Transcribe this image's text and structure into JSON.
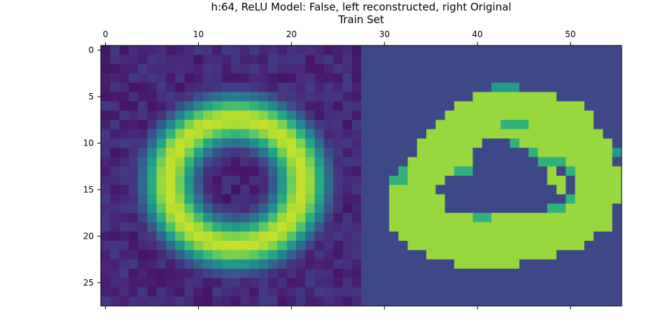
{
  "chart_data": {
    "type": "heatmap",
    "title_line1": "h:64, ReLU Model: False, left reconstructed, right Original",
    "title_line2": "Train Set",
    "colormap": "viridis",
    "image_width": 56,
    "image_height": 28,
    "x_ticks": [
      0,
      10,
      20,
      30,
      40,
      50
    ],
    "x_tick_labels": [
      "0",
      "10",
      "20",
      "30",
      "40",
      "50"
    ],
    "y_ticks": [
      0,
      5,
      10,
      15,
      20,
      25
    ],
    "y_tick_labels": [
      "0",
      "5",
      "10",
      "15",
      "20",
      "25"
    ],
    "x_axis_position": "top",
    "grid": false,
    "panels": [
      {
        "name": "reconstructed",
        "col_range": [
          0,
          27
        ],
        "description_values": "approximate intensities (0-1) of reconstructed ring-shaped digit zero",
        "ring": {
          "center_x": 14.0,
          "center_y": 14.2,
          "radius_x": 7.2,
          "radius_y": 6.8,
          "thickness": 2.0,
          "peak": 0.92
        },
        "background_level": 0.12
      },
      {
        "name": "original",
        "col_range": [
          28,
          55
        ],
        "rows": [
          "............................",
          "............................",
          "............................",
          "............................",
          "..............ddd...........",
          "............lllllllll.......",
          "..........llllllllllllll....",
          ".........llllllllllllllll...",
          "........lllllllssslllllll...",
          ".......lllllllllllllllllll..",
          "......lllllll...sllllllllll.",
          "......llllll......slllllllld",
          ".....lllllll.......ssslllll.",
          "....slllllss........l.slllll",
          "...ssllll...........ll.lllll",
          "...lllll.............l.lllll",
          "...llllll.............slllll",
          "...llllll...........sslllll.",
          "...lllllllllsslllllllllllll.",
          "...llllllllllllllllllllllll.",
          "....lllllllllllllllllllll...",
          ".....lllllllllllllllllll....",
          ".......llllllllllllll.......",
          "..........lllllll...........",
          "............................",
          "............................",
          "............................",
          "............................"
        ],
        "legend_for_rows": {
          ".": 0.0,
          "l": 0.85,
          "s": 0.65,
          "d": 0.55
        }
      }
    ]
  }
}
